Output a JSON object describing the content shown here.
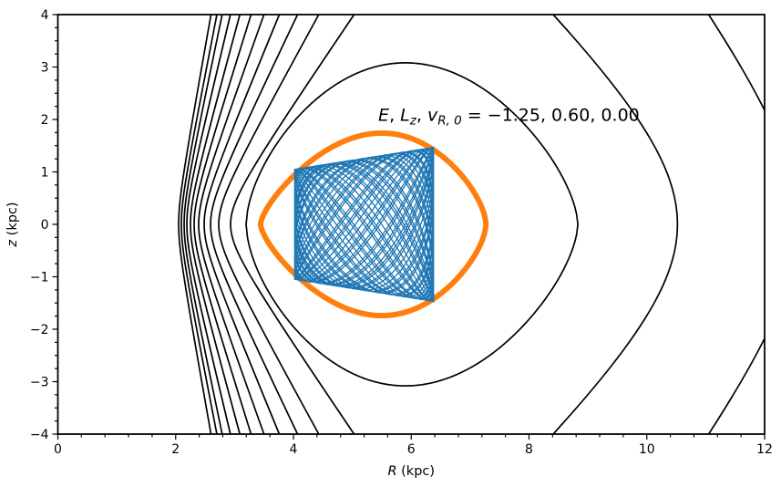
{
  "figure_title": "",
  "colors": {
    "background": "#ffffff",
    "contour": "#000000",
    "zero_velocity": "#ff7f0e",
    "orbit": "#1f77b4",
    "text": "#000000"
  },
  "chart_data": {
    "type": "line",
    "subtype": "effective-potential-contours-with-orbit",
    "xlabel": "R (kpc)",
    "ylabel": "z (kpc)",
    "xlabel_segments": [
      {
        "t": "R",
        "italic": true,
        "sub": false
      },
      {
        "t": " (kpc)",
        "italic": false,
        "sub": false
      }
    ],
    "ylabel_segments": [
      {
        "t": "z",
        "italic": true,
        "sub": false
      },
      {
        "t": " (kpc)",
        "italic": false,
        "sub": false
      }
    ],
    "xlim": [
      0,
      12
    ],
    "ylim": [
      -4,
      4
    ],
    "x_major_ticks": [
      {
        "v": 0,
        "label": "0"
      },
      {
        "v": 2,
        "label": "2"
      },
      {
        "v": 4,
        "label": "4"
      },
      {
        "v": 6,
        "label": "6"
      },
      {
        "v": 8,
        "label": "8"
      },
      {
        "v": 10,
        "label": "10"
      },
      {
        "v": 12,
        "label": "12"
      }
    ],
    "x_minor_step": 0.4,
    "y_major_ticks": [
      {
        "v": 4,
        "label": "4"
      },
      {
        "v": 3,
        "label": "3"
      },
      {
        "v": 2,
        "label": "2"
      },
      {
        "v": 1,
        "label": "1"
      },
      {
        "v": 0,
        "label": "0"
      },
      {
        "v": -1,
        "label": "−1"
      },
      {
        "v": -2,
        "label": "−2"
      },
      {
        "v": -3,
        "label": "−3"
      },
      {
        "v": -4,
        "label": "−4"
      }
    ],
    "y_minor_step": 0.25,
    "grid": false,
    "legend": null,
    "annotation": {
      "text": "E, L_z, v_R,0 = −1.25, 0.60, 0.00",
      "anchor_R": 5.44,
      "anchor_z": 1.97,
      "segments": [
        {
          "t": "E",
          "italic": true,
          "sub": false
        },
        {
          "t": ", ",
          "italic": false,
          "sub": false
        },
        {
          "t": "L",
          "italic": true,
          "sub": false
        },
        {
          "t": "z",
          "italic": true,
          "sub": true
        },
        {
          "t": ", ",
          "italic": false,
          "sub": false
        },
        {
          "t": "v",
          "italic": true,
          "sub": false
        },
        {
          "t": "R, 0",
          "italic": true,
          "sub": true
        },
        {
          "t": " = −1.25, 0.60, 0.00",
          "italic": false,
          "sub": false
        }
      ]
    },
    "parameters": {
      "E": "−1.25",
      "Lz": "0.60",
      "vR0": "0.00"
    },
    "contours": {
      "description": "black equipotential contours of the effective potential, symmetric about z=0",
      "left_branches": [
        {
          "R_at_z0": 2.051,
          "R_at_ztop": 2.6
        },
        {
          "R_at_z0": 2.097,
          "R_at_ztop": 2.7
        },
        {
          "R_at_z0": 2.144,
          "R_at_ztop": 2.79
        },
        {
          "R_at_z0": 2.19,
          "R_at_ztop": 2.93
        },
        {
          "R_at_z0": 2.252,
          "R_at_ztop": 3.09
        },
        {
          "R_at_z0": 2.314,
          "R_at_ztop": 3.28
        },
        {
          "R_at_z0": 2.391,
          "R_at_ztop": 3.5
        },
        {
          "R_at_z0": 2.484,
          "R_at_ztop": 3.76
        },
        {
          "R_at_z0": 2.593,
          "R_at_ztop": 4.07
        },
        {
          "R_at_z0": 2.732,
          "R_at_ztop": 4.43
        },
        {
          "R_at_z0": 2.933,
          "R_at_ztop": 5.03
        }
      ],
      "right_branches": [
        {
          "R_at_z0": 10.52,
          "R_at_ztop": 8.41
        },
        {
          "R_at_z0": 12.55,
          "R_at_ztop": 11.05
        }
      ],
      "closed": [
        {
          "R_left": 3.196,
          "R_right": 8.83,
          "z_top": 3.08,
          "R_peak": 5.9
        }
      ],
      "hyperbola_w_left": 0.6,
      "hyperbola_w_right": 2.5,
      "lens_exponent": 0.62
    },
    "zero_velocity_curve": {
      "R_left": 3.44,
      "R_right": 7.27,
      "z_top": 1.74,
      "R_peak": 5.5,
      "lens_exponent": 0.62
    },
    "orbit": {
      "description": "blue box-orbit trace in the meridional (R,z) plane",
      "R_min": 4.02,
      "R_max": 6.38,
      "z_max_at_Rmin": 1.05,
      "z_max_at_Rmax": 1.47,
      "freq_ratio_z_over_R": 1.4142,
      "phase": 0.25,
      "R_cycles": 30
    }
  }
}
